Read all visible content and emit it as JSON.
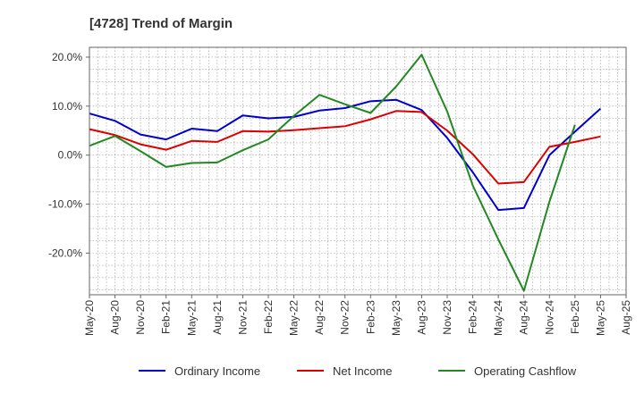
{
  "chart_data": {
    "type": "line",
    "title": "[4728]  Trend of Margin",
    "xlabel": "",
    "ylabel": "",
    "x": [
      "May-20",
      "Aug-20",
      "Nov-20",
      "Feb-21",
      "May-21",
      "Aug-21",
      "Nov-21",
      "Feb-22",
      "May-22",
      "Aug-22",
      "Nov-22",
      "Feb-23",
      "May-23",
      "Aug-23",
      "Nov-23",
      "Feb-24",
      "May-24",
      "Aug-24",
      "Nov-24",
      "Feb-25",
      "May-25",
      "Aug-25"
    ],
    "yticks": [
      -20,
      -10,
      0,
      10,
      20
    ],
    "ytick_labels": [
      "-20.0%",
      "-10.0%",
      "0.0%",
      "10.0%",
      "20.0%"
    ],
    "ylim": [
      -28.5,
      22
    ],
    "grid": true,
    "legend_position": "bottom",
    "series": [
      {
        "name": "Ordinary Income",
        "color": "#0000cc",
        "values": [
          8.5,
          7.0,
          4.2,
          3.2,
          5.4,
          4.9,
          8.1,
          7.5,
          7.8,
          9.1,
          9.6,
          11.0,
          11.3,
          9.2,
          3.5,
          -3.5,
          -11.2,
          -10.8,
          0.0,
          4.8,
          9.5,
          null
        ]
      },
      {
        "name": "Net Income",
        "color": "#dd0000",
        "values": [
          5.3,
          4.1,
          2.2,
          1.1,
          2.9,
          2.7,
          4.9,
          4.8,
          5.1,
          5.5,
          5.9,
          7.3,
          9.0,
          8.8,
          5.0,
          0.2,
          -5.8,
          -5.5,
          1.7,
          2.7,
          3.8,
          null
        ]
      },
      {
        "name": "Operating Cashflow",
        "color": "#228822",
        "values": [
          1.9,
          3.9,
          0.8,
          -2.4,
          -1.6,
          -1.5,
          1.0,
          3.2,
          8.0,
          12.3,
          10.4,
          8.6,
          14.0,
          20.5,
          8.9,
          -6.2,
          -17.2,
          -27.7,
          -9.5,
          6.2,
          null,
          null
        ]
      }
    ]
  }
}
